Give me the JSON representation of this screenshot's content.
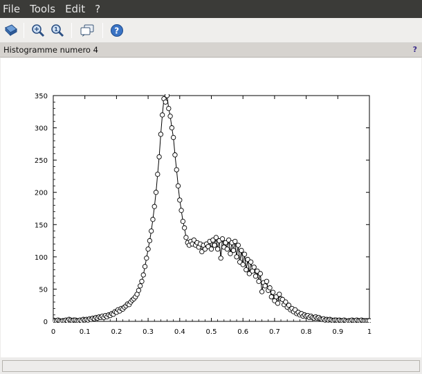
{
  "menu": {
    "file": "File",
    "tools": "Tools",
    "edit": "Edit",
    "help": "?"
  },
  "toolbar": {
    "buttons": [
      {
        "icon": "rotate-icon"
      },
      {
        "icon": "zoom-icon"
      },
      {
        "icon": "zoom-reset-icon"
      },
      {
        "icon": "datatip-icon"
      },
      {
        "icon": "help-icon"
      }
    ]
  },
  "figure": {
    "title": "Histogramme numero 4",
    "help_mark": "?"
  },
  "status": {
    "text": ""
  },
  "chart_data": {
    "type": "line",
    "title": "",
    "xlabel": "",
    "ylabel": "",
    "xlim": [
      0,
      1
    ],
    "ylim": [
      0,
      350
    ],
    "xticks": [
      "0",
      "0.1",
      "0.2",
      "0.3",
      "0.4",
      "0.5",
      "0.6",
      "0.7",
      "0.8",
      "0.9",
      "1"
    ],
    "yticks": [
      "0",
      "50",
      "100",
      "150",
      "200",
      "250",
      "300",
      "350"
    ],
    "grid": false,
    "series": [
      {
        "marker": "circle",
        "line_color": "#000000",
        "marker_fill": "#ffffff",
        "points": [
          [
            0.0,
            2
          ],
          [
            0.005,
            1
          ],
          [
            0.01,
            1
          ],
          [
            0.015,
            2
          ],
          [
            0.02,
            1
          ],
          [
            0.025,
            0
          ],
          [
            0.03,
            1
          ],
          [
            0.035,
            1
          ],
          [
            0.04,
            2
          ],
          [
            0.045,
            1
          ],
          [
            0.05,
            3
          ],
          [
            0.055,
            2
          ],
          [
            0.06,
            1
          ],
          [
            0.065,
            2
          ],
          [
            0.07,
            2
          ],
          [
            0.075,
            1
          ],
          [
            0.08,
            1
          ],
          [
            0.085,
            2
          ],
          [
            0.09,
            1
          ],
          [
            0.095,
            3
          ],
          [
            0.1,
            2
          ],
          [
            0.105,
            3
          ],
          [
            0.11,
            2
          ],
          [
            0.115,
            4
          ],
          [
            0.12,
            3
          ],
          [
            0.125,
            5
          ],
          [
            0.13,
            4
          ],
          [
            0.135,
            6
          ],
          [
            0.14,
            5
          ],
          [
            0.145,
            7
          ],
          [
            0.15,
            6
          ],
          [
            0.155,
            8
          ],
          [
            0.16,
            6
          ],
          [
            0.165,
            9
          ],
          [
            0.17,
            7
          ],
          [
            0.175,
            10
          ],
          [
            0.18,
            9
          ],
          [
            0.185,
            12
          ],
          [
            0.19,
            11
          ],
          [
            0.195,
            15
          ],
          [
            0.2,
            14
          ],
          [
            0.205,
            18
          ],
          [
            0.21,
            16
          ],
          [
            0.215,
            20
          ],
          [
            0.22,
            19
          ],
          [
            0.225,
            22
          ],
          [
            0.23,
            24
          ],
          [
            0.235,
            27
          ],
          [
            0.24,
            26
          ],
          [
            0.245,
            30
          ],
          [
            0.25,
            33
          ],
          [
            0.255,
            35
          ],
          [
            0.26,
            38
          ],
          [
            0.265,
            42
          ],
          [
            0.27,
            48
          ],
          [
            0.275,
            55
          ],
          [
            0.28,
            62
          ],
          [
            0.285,
            72
          ],
          [
            0.29,
            85
          ],
          [
            0.295,
            98
          ],
          [
            0.3,
            112
          ],
          [
            0.305,
            125
          ],
          [
            0.31,
            140
          ],
          [
            0.315,
            158
          ],
          [
            0.32,
            178
          ],
          [
            0.325,
            200
          ],
          [
            0.33,
            228
          ],
          [
            0.335,
            255
          ],
          [
            0.34,
            290
          ],
          [
            0.345,
            320
          ],
          [
            0.35,
            345
          ],
          [
            0.355,
            340
          ],
          [
            0.36,
            350
          ],
          [
            0.365,
            330
          ],
          [
            0.37,
            318
          ],
          [
            0.375,
            300
          ],
          [
            0.38,
            285
          ],
          [
            0.385,
            258
          ],
          [
            0.39,
            235
          ],
          [
            0.395,
            210
          ],
          [
            0.4,
            188
          ],
          [
            0.405,
            172
          ],
          [
            0.41,
            155
          ],
          [
            0.415,
            145
          ],
          [
            0.42,
            130
          ],
          [
            0.425,
            122
          ],
          [
            0.43,
            118
          ],
          [
            0.435,
            124
          ],
          [
            0.44,
            120
          ],
          [
            0.445,
            126
          ],
          [
            0.45,
            118
          ],
          [
            0.455,
            122
          ],
          [
            0.46,
            115
          ],
          [
            0.465,
            120
          ],
          [
            0.47,
            108
          ],
          [
            0.475,
            118
          ],
          [
            0.48,
            112
          ],
          [
            0.485,
            120
          ],
          [
            0.49,
            116
          ],
          [
            0.495,
            124
          ],
          [
            0.5,
            112
          ],
          [
            0.505,
            126
          ],
          [
            0.51,
            118
          ],
          [
            0.515,
            130
          ],
          [
            0.52,
            112
          ],
          [
            0.525,
            125
          ],
          [
            0.53,
            98
          ],
          [
            0.535,
            128
          ],
          [
            0.54,
            115
          ],
          [
            0.545,
            122
          ],
          [
            0.55,
            112
          ],
          [
            0.555,
            126
          ],
          [
            0.56,
            105
          ],
          [
            0.565,
            122
          ],
          [
            0.57,
            110
          ],
          [
            0.575,
            124
          ],
          [
            0.58,
            100
          ],
          [
            0.585,
            118
          ],
          [
            0.59,
            92
          ],
          [
            0.595,
            110
          ],
          [
            0.6,
            88
          ],
          [
            0.605,
            104
          ],
          [
            0.61,
            80
          ],
          [
            0.615,
            96
          ],
          [
            0.62,
            74
          ],
          [
            0.625,
            92
          ],
          [
            0.63,
            78
          ],
          [
            0.635,
            84
          ],
          [
            0.64,
            70
          ],
          [
            0.645,
            78
          ],
          [
            0.65,
            62
          ],
          [
            0.655,
            74
          ],
          [
            0.66,
            46
          ],
          [
            0.665,
            60
          ],
          [
            0.67,
            55
          ],
          [
            0.675,
            62
          ],
          [
            0.68,
            48
          ],
          [
            0.685,
            52
          ],
          [
            0.69,
            38
          ],
          [
            0.695,
            45
          ],
          [
            0.7,
            32
          ],
          [
            0.705,
            38
          ],
          [
            0.71,
            28
          ],
          [
            0.715,
            42
          ],
          [
            0.72,
            35
          ],
          [
            0.725,
            34
          ],
          [
            0.73,
            26
          ],
          [
            0.735,
            30
          ],
          [
            0.74,
            22
          ],
          [
            0.745,
            25
          ],
          [
            0.75,
            18
          ],
          [
            0.755,
            20
          ],
          [
            0.76,
            15
          ],
          [
            0.765,
            18
          ],
          [
            0.77,
            12
          ],
          [
            0.775,
            14
          ],
          [
            0.78,
            10
          ],
          [
            0.785,
            12
          ],
          [
            0.79,
            8
          ],
          [
            0.795,
            10
          ],
          [
            0.8,
            8
          ],
          [
            0.805,
            9
          ],
          [
            0.81,
            6
          ],
          [
            0.815,
            8
          ],
          [
            0.82,
            6
          ],
          [
            0.825,
            5
          ],
          [
            0.83,
            7
          ],
          [
            0.835,
            5
          ],
          [
            0.84,
            6
          ],
          [
            0.845,
            4
          ],
          [
            0.85,
            3
          ],
          [
            0.855,
            4
          ],
          [
            0.86,
            2
          ],
          [
            0.865,
            3
          ],
          [
            0.87,
            2
          ],
          [
            0.875,
            3
          ],
          [
            0.88,
            2
          ],
          [
            0.885,
            1
          ],
          [
            0.89,
            2
          ],
          [
            0.895,
            2
          ],
          [
            0.9,
            1
          ],
          [
            0.905,
            2
          ],
          [
            0.91,
            1
          ],
          [
            0.915,
            1
          ],
          [
            0.92,
            2
          ],
          [
            0.925,
            1
          ],
          [
            0.93,
            0
          ],
          [
            0.935,
            1
          ],
          [
            0.94,
            1
          ],
          [
            0.945,
            2
          ],
          [
            0.95,
            1
          ],
          [
            0.955,
            1
          ],
          [
            0.96,
            2
          ],
          [
            0.965,
            1
          ],
          [
            0.97,
            1
          ],
          [
            0.975,
            2
          ],
          [
            0.98,
            1
          ],
          [
            0.985,
            1
          ],
          [
            0.99,
            1
          ],
          [
            0.995,
            1
          ],
          [
            1.0,
            1
          ]
        ]
      }
    ]
  }
}
